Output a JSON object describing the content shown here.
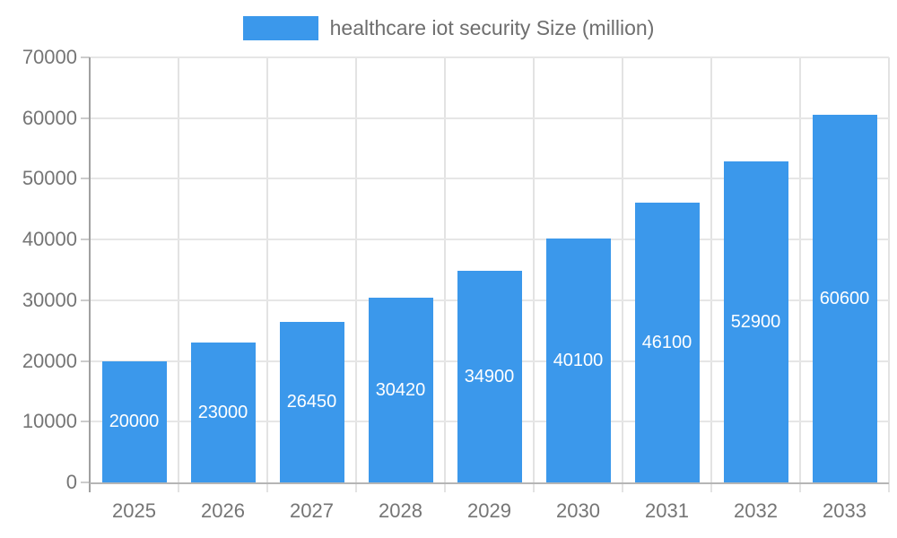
{
  "legend": {
    "label": "healthcare iot security Size (million)"
  },
  "colors": {
    "bar": "#3b98eb",
    "hgrid": "#e6e6e6",
    "vgrid": "#e3e3e3",
    "y_axis": "#a0a0a0",
    "x_axis": "#b5b5b5",
    "tick": "#cccccc",
    "axis_text": "#757575",
    "legend_text": "#6e6e6e",
    "bar_label_text": "#ffffff"
  },
  "chart_data": {
    "type": "bar",
    "title": "healthcare iot security Size (million)",
    "categories": [
      "2025",
      "2026",
      "2027",
      "2028",
      "2029",
      "2030",
      "2031",
      "2032",
      "2033"
    ],
    "values": [
      20000,
      23000,
      26450,
      30420,
      34900,
      40100,
      46100,
      52900,
      60600
    ],
    "bar_labels": [
      "20000",
      "23000",
      "26450",
      "30420",
      "34900",
      "40100",
      "46100",
      "52900",
      "60600"
    ],
    "xlabel": "",
    "ylabel": "",
    "ylim": [
      0,
      70000
    ],
    "ytick_step": 10000,
    "ytick_labels": [
      "0",
      "10000",
      "20000",
      "30000",
      "40000",
      "50000",
      "60000",
      "70000"
    ],
    "grid": true,
    "legend_position": "top",
    "bar_value_labels": "inside-center"
  }
}
